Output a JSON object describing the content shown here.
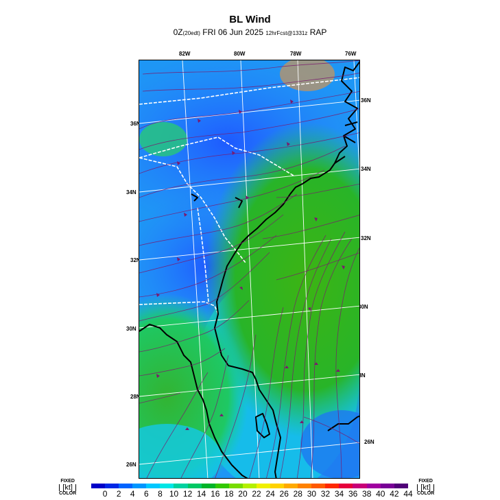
{
  "header": {
    "title": "BL Wind",
    "subtitle_prefix": "0Z",
    "subtitle_small1": "(20edt)",
    "subtitle_mid": " FRI 06 Jun 2025 ",
    "subtitle_small2": "12hrFcst@1331z",
    "subtitle_suffix": " RAP"
  },
  "map": {
    "longitude_labels": [
      "82W",
      "80W",
      "78W",
      "76W"
    ],
    "latitude_labels_left": [
      "36N",
      "34N",
      "32N",
      "30N",
      "28N",
      "26N"
    ],
    "latitude_labels_right": [
      "36N",
      "34N",
      "32N",
      "30N",
      "28N",
      "26N"
    ]
  },
  "colorbar": {
    "left_top": "FIXED",
    "left_unit": "[kt]",
    "left_bottom": "COLOR",
    "right_top": "FIXED",
    "right_unit": "[kt]",
    "right_bottom": "COLOR",
    "labels": [
      "0",
      "2",
      "4",
      "6",
      "8",
      "10",
      "12",
      "14",
      "16",
      "18",
      "20",
      "22",
      "24",
      "26",
      "28",
      "30",
      "32",
      "34",
      "36",
      "38",
      "40",
      "42",
      "44"
    ],
    "colors": [
      "#0000c8",
      "#0028e6",
      "#0064ff",
      "#0096ff",
      "#00c8ff",
      "#00e6e6",
      "#00d2a0",
      "#00c864",
      "#00b428",
      "#32c800",
      "#78dc00",
      "#b4f000",
      "#f0f000",
      "#ffd200",
      "#ffaa00",
      "#ff8200",
      "#ff5a00",
      "#ff2800",
      "#e6003c",
      "#c80078",
      "#a000a0",
      "#780096",
      "#500078"
    ]
  }
}
